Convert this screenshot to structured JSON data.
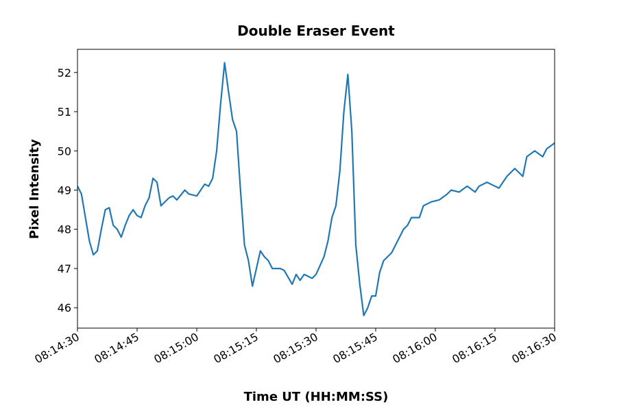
{
  "chart_data": {
    "type": "line",
    "title": "Double Eraser Event",
    "x_label": "Time UT (HH:MM:SS)",
    "y_label": "Pixel Intensity",
    "x": [
      "08:14:30",
      "08:14:31",
      "08:14:32",
      "08:14:33",
      "08:14:34",
      "08:14:35",
      "08:14:36",
      "08:14:37",
      "08:14:38",
      "08:14:39",
      "08:14:40",
      "08:14:41",
      "08:14:42",
      "08:14:43",
      "08:14:44",
      "08:14:45",
      "08:14:46",
      "08:14:47",
      "08:14:48",
      "08:14:49",
      "08:14:50",
      "08:14:51",
      "08:14:53",
      "08:14:54",
      "08:14:55",
      "08:14:57",
      "08:14:58",
      "08:15:00",
      "08:15:01",
      "08:15:02",
      "08:15:03",
      "08:15:04",
      "08:15:05",
      "08:15:06",
      "08:15:07",
      "08:15:08",
      "08:15:09",
      "08:15:10",
      "08:15:11",
      "08:15:12",
      "08:15:13",
      "08:15:14",
      "08:15:15",
      "08:15:16",
      "08:15:17",
      "08:15:18",
      "08:15:19",
      "08:15:21",
      "08:15:22",
      "08:15:24",
      "08:15:25",
      "08:15:26",
      "08:15:27",
      "08:15:28",
      "08:15:29",
      "08:15:30",
      "08:15:32",
      "08:15:33",
      "08:15:34",
      "08:15:35",
      "08:15:36",
      "08:15:37",
      "08:15:38",
      "08:15:39",
      "08:15:40",
      "08:15:41",
      "08:15:42",
      "08:15:43",
      "08:15:44",
      "08:15:45",
      "08:15:46",
      "08:15:47",
      "08:15:49",
      "08:15:50",
      "08:15:52",
      "08:15:53",
      "08:15:54",
      "08:15:56",
      "08:15:57",
      "08:15:59",
      "08:16:01",
      "08:16:03",
      "08:16:04",
      "08:16:06",
      "08:16:08",
      "08:16:10",
      "08:16:11",
      "08:16:13",
      "08:16:15",
      "08:16:16",
      "08:16:18",
      "08:16:20",
      "08:16:22",
      "08:16:23",
      "08:16:25",
      "08:16:27",
      "08:16:28",
      "08:16:30"
    ],
    "series": [
      {
        "name": "Pixel Intensity",
        "color": "#1f77b4",
        "values": [
          49.1,
          48.9,
          48.3,
          47.7,
          47.35,
          47.45,
          48.0,
          48.5,
          48.55,
          48.1,
          48.0,
          47.8,
          48.1,
          48.35,
          48.5,
          48.35,
          48.3,
          48.6,
          48.8,
          49.3,
          49.2,
          48.6,
          48.8,
          48.85,
          48.75,
          49.0,
          48.9,
          48.85,
          49.0,
          49.15,
          49.1,
          49.3,
          50.0,
          51.2,
          52.25,
          51.5,
          50.8,
          50.5,
          49.0,
          47.6,
          47.2,
          46.55,
          47.0,
          47.45,
          47.3,
          47.2,
          47.0,
          47.0,
          46.95,
          46.6,
          46.85,
          46.7,
          46.85,
          46.8,
          46.75,
          46.85,
          47.3,
          47.7,
          48.3,
          48.6,
          49.5,
          51.0,
          51.95,
          50.5,
          47.6,
          46.6,
          45.8,
          46.0,
          46.3,
          46.3,
          46.9,
          47.2,
          47.4,
          47.6,
          48.0,
          48.1,
          48.3,
          48.3,
          48.6,
          48.7,
          48.75,
          48.9,
          49.0,
          48.95,
          49.1,
          48.95,
          49.1,
          49.2,
          49.1,
          49.05,
          49.35,
          49.55,
          49.35,
          49.85,
          50.0,
          49.85,
          50.05,
          50.2
        ]
      }
    ],
    "xlim": [
      "08:14:30",
      "08:16:30"
    ],
    "xticks": [
      "08:14:30",
      "08:14:45",
      "08:15:00",
      "08:15:15",
      "08:15:30",
      "08:15:45",
      "08:16:00",
      "08:16:15",
      "08:16:30"
    ],
    "ylim": [
      45.48,
      52.59
    ],
    "yticks": [
      46,
      47,
      48,
      49,
      50,
      51,
      52
    ]
  }
}
